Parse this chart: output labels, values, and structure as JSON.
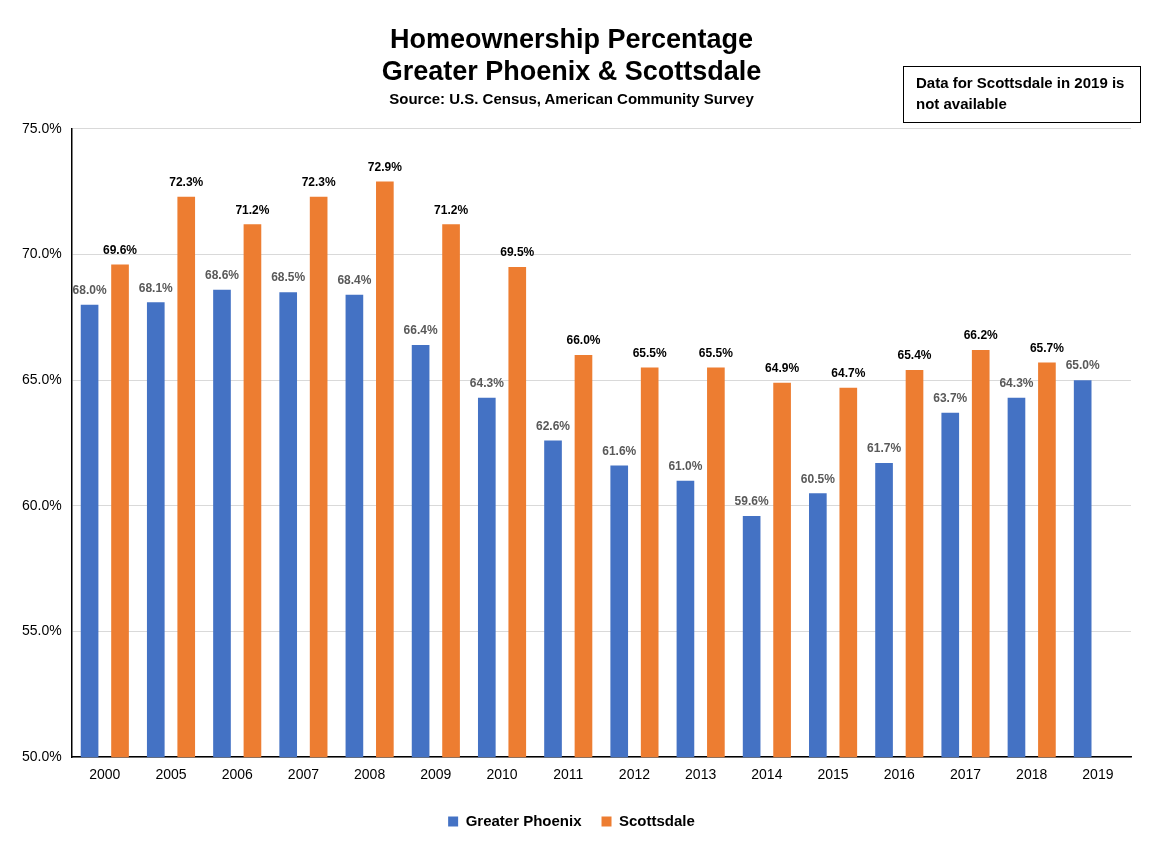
{
  "chart_data": {
    "type": "bar",
    "title": "Homeownership Percentage\nGreater Phoenix & Scottsdale",
    "subtitle": "Source: U.S. Census, American Community Survey",
    "annotations": [
      "Data for Scottsdale in 2019 is not available"
    ],
    "categories": [
      "2000",
      "2005",
      "2006",
      "2007",
      "2008",
      "2009",
      "2010",
      "2011",
      "2012",
      "2013",
      "2014",
      "2015",
      "2016",
      "2017",
      "2018",
      "2019"
    ],
    "series": [
      {
        "name": "Greater Phoenix",
        "color": "#4472c4",
        "values": [
          68.0,
          68.1,
          68.6,
          68.5,
          68.4,
          66.4,
          64.3,
          62.6,
          61.6,
          61.0,
          59.6,
          60.5,
          61.7,
          63.7,
          64.3,
          65.0
        ],
        "value_labels": [
          "68.0%",
          "68.1%",
          "68.6%",
          "68.5%",
          "68.4%",
          "66.4%",
          "64.3%",
          "62.6%",
          "61.6%",
          "61.0%",
          "59.6%",
          "60.5%",
          "61.7%",
          "63.7%",
          "64.3%",
          "65.0%"
        ]
      },
      {
        "name": "Scottsdale",
        "color": "#ed7d31",
        "values": [
          69.6,
          72.3,
          71.2,
          72.3,
          72.9,
          71.2,
          69.5,
          66.0,
          65.5,
          65.5,
          64.9,
          64.7,
          65.4,
          66.2,
          65.7,
          null
        ],
        "value_labels": [
          "69.6%",
          "72.3%",
          "71.2%",
          "72.3%",
          "72.9%",
          "71.2%",
          "69.5%",
          "66.0%",
          "65.5%",
          "65.5%",
          "64.9%",
          "64.7%",
          "65.4%",
          "66.2%",
          "65.7%",
          null
        ]
      }
    ],
    "ylim": [
      50,
      75
    ],
    "yticks": [
      {
        "value": 50,
        "label": "50.0%"
      },
      {
        "value": 55,
        "label": "55.0%"
      },
      {
        "value": 60,
        "label": "60.0%"
      },
      {
        "value": 65,
        "label": "65.0%"
      },
      {
        "value": 70,
        "label": "70.0%"
      },
      {
        "value": 75,
        "label": "75.0%"
      }
    ],
    "grid": "y",
    "legend": "bottom"
  }
}
